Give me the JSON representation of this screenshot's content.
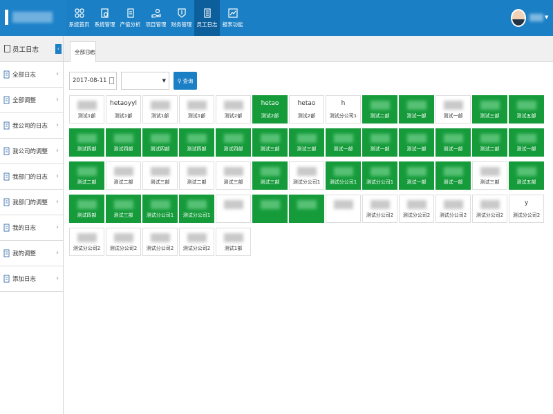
{
  "nav": {
    "items": [
      {
        "label": "系统首页",
        "icon": "grid-icon"
      },
      {
        "label": "系统管理",
        "icon": "settings-doc-icon"
      },
      {
        "label": "产值分析",
        "icon": "chart-doc-icon"
      },
      {
        "label": "项目管理",
        "icon": "hand-coin-icon"
      },
      {
        "label": "财务管理",
        "icon": "finance-icon"
      },
      {
        "label": "员工日志",
        "icon": "log-icon",
        "active": true
      },
      {
        "label": "报表功能",
        "icon": "report-icon"
      }
    ]
  },
  "sidebar": {
    "title": "员工日志",
    "items": [
      {
        "label": "全部日志",
        "icon": "log-all-icon"
      },
      {
        "label": "全部调整",
        "icon": "adjust-all-icon"
      },
      {
        "label": "我公司的日志",
        "icon": "company-log-icon"
      },
      {
        "label": "我公司的调整",
        "icon": "company-adjust-icon"
      },
      {
        "label": "我部门的日志",
        "icon": "dept-log-icon"
      },
      {
        "label": "我部门的调整",
        "icon": "dept-adjust-icon"
      },
      {
        "label": "我的日志",
        "icon": "my-log-icon"
      },
      {
        "label": "我的调整",
        "icon": "my-adjust-icon"
      },
      {
        "label": "添加日志",
        "icon": "add-log-icon"
      }
    ]
  },
  "tab": {
    "label": "全部日志",
    "close": "×"
  },
  "filters": {
    "date": "2017-08-11",
    "select_value": "",
    "query_label": "查询"
  },
  "colors": {
    "green": "#169b3b",
    "blue": "#1a7fc4"
  },
  "cards": [
    [
      {
        "name": "",
        "dept": "测试1部",
        "green": false
      },
      {
        "name": "hetaoyyl",
        "dept": "测试1部",
        "green": false
      },
      {
        "name": "",
        "dept": "测试1部",
        "green": false
      },
      {
        "name": "",
        "dept": "测试1部",
        "green": false
      },
      {
        "name": "",
        "dept": "测试2部",
        "green": false
      },
      {
        "name": "hetao",
        "dept": "测试2部",
        "green": true
      },
      {
        "name": "hetao",
        "dept": "测试2部",
        "green": false
      },
      {
        "name": "h",
        "dept": "测试分公司1",
        "green": false
      },
      {
        "name": "",
        "dept": "测试二部",
        "green": true
      },
      {
        "name": "",
        "dept": "测试一部",
        "green": true
      },
      {
        "name": "",
        "dept": "测试一部",
        "green": false
      },
      {
        "name": "",
        "dept": "测试三部",
        "green": true
      },
      {
        "name": "",
        "dept": "测试五部",
        "green": true
      }
    ],
    [
      {
        "name": "",
        "dept": "测试四部",
        "green": true
      },
      {
        "name": "",
        "dept": "测试四部",
        "green": true
      },
      {
        "name": "",
        "dept": "测试四部",
        "green": true
      },
      {
        "name": "",
        "dept": "测试四部",
        "green": true
      },
      {
        "name": "",
        "dept": "测试四部",
        "green": true
      },
      {
        "name": "",
        "dept": "测试三部",
        "green": true
      },
      {
        "name": "",
        "dept": "测试三部",
        "green": true
      },
      {
        "name": "",
        "dept": "测试一部",
        "green": true
      },
      {
        "name": "",
        "dept": "测试一部",
        "green": true
      },
      {
        "name": "",
        "dept": "测试一部",
        "green": true
      },
      {
        "name": "",
        "dept": "测试一部",
        "green": true
      },
      {
        "name": "",
        "dept": "测试二部",
        "green": true
      },
      {
        "name": "",
        "dept": "测试一部",
        "green": true
      }
    ],
    [
      {
        "name": "",
        "dept": "测试二部",
        "green": true
      },
      {
        "name": "",
        "dept": "测试二部",
        "green": false
      },
      {
        "name": "",
        "dept": "测试三部",
        "green": false
      },
      {
        "name": "",
        "dept": "测试二部",
        "green": false
      },
      {
        "name": "",
        "dept": "测试三部",
        "green": false
      },
      {
        "name": "",
        "dept": "测试三部",
        "green": true
      },
      {
        "name": "",
        "dept": "测试分公司1",
        "green": false
      },
      {
        "name": "",
        "dept": "测试分公司1",
        "green": true
      },
      {
        "name": "",
        "dept": "测试分公司1",
        "green": true
      },
      {
        "name": "",
        "dept": "测试一部",
        "green": true
      },
      {
        "name": "",
        "dept": "测试一部",
        "green": true
      },
      {
        "name": "",
        "dept": "测试三部",
        "green": false
      },
      {
        "name": "",
        "dept": "测试五部",
        "green": true
      }
    ],
    [
      {
        "name": "",
        "dept": "测试四部",
        "green": true
      },
      {
        "name": "",
        "dept": "测试三部",
        "green": true
      },
      {
        "name": "",
        "dept": "测试分公司1",
        "green": true
      },
      {
        "name": "",
        "dept": "测试分公司1",
        "green": true
      },
      {
        "name": "",
        "dept": "",
        "green": false
      },
      {
        "name": "",
        "dept": "",
        "green": true
      },
      {
        "name": "",
        "dept": "",
        "green": true
      },
      {
        "name": "",
        "dept": "",
        "green": false
      },
      {
        "name": "",
        "dept": "测试分公司2",
        "green": false
      },
      {
        "name": "",
        "dept": "测试分公司2",
        "green": false
      },
      {
        "name": "",
        "dept": "测试分公司2",
        "green": false
      },
      {
        "name": "",
        "dept": "测试分公司2",
        "green": false
      },
      {
        "name": "y",
        "dept": "测试分公司2",
        "green": false
      }
    ],
    [
      {
        "name": "",
        "dept": "测试分公司2",
        "green": false
      },
      {
        "name": "",
        "dept": "测试分公司2",
        "green": false
      },
      {
        "name": "",
        "dept": "测试分公司2",
        "green": false
      },
      {
        "name": "",
        "dept": "测试分公司2",
        "green": false
      },
      {
        "name": "",
        "dept": "测试1部",
        "green": false
      }
    ]
  ]
}
